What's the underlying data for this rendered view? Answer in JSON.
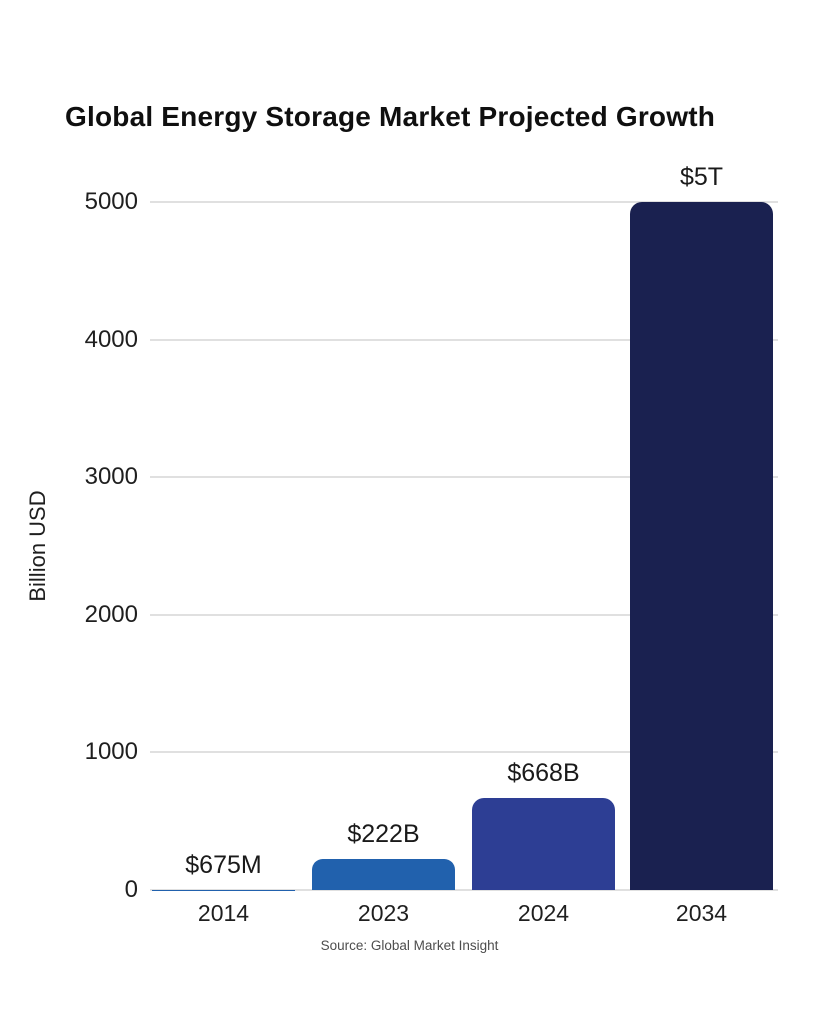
{
  "chart_data": {
    "type": "bar",
    "title": "Global Energy Storage Market Projected Growth",
    "ylabel": "Billion USD",
    "source": "Source: Global Market Insight",
    "categories": [
      "2014",
      "2023",
      "2024",
      "2034"
    ],
    "values": [
      0.675,
      222,
      668,
      5000
    ],
    "value_labels": [
      "$675M",
      "$222B",
      "$668B",
      "$5T"
    ],
    "series_unit": "billion USD",
    "bar_colors": [
      "#2161ad",
      "#2161ad",
      "#2d3e94",
      "#1a2150"
    ],
    "y_ticks": [
      0,
      1000,
      2000,
      3000,
      4000,
      5000
    ],
    "ylim": [
      0,
      5000
    ],
    "grid": true,
    "legend_position": "none",
    "colors": {
      "background": "#ffffff",
      "gridline": "#e0e0e0",
      "title_text": "#0f0f0f",
      "tick_text": "#1f1f1f",
      "value_label_text": "#1a1a1a",
      "source_text": "#4d4d4d"
    }
  }
}
